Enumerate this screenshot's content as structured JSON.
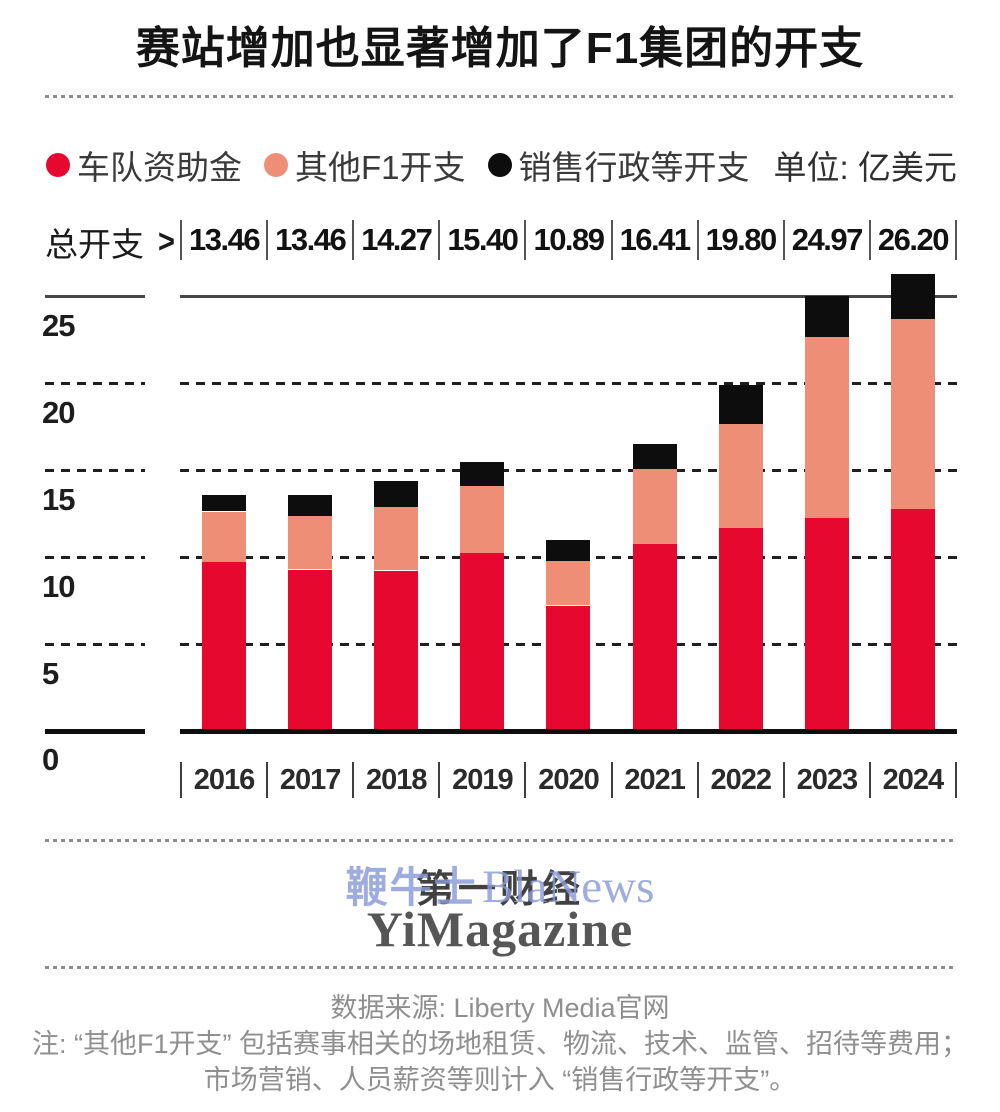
{
  "title": "赛站增加也显著增加了F1集团的开支",
  "legend": {
    "items": [
      {
        "label": "车队资助金",
        "color": "#e6082e"
      },
      {
        "label": "其他F1开支",
        "color": "#ef8e76"
      },
      {
        "label": "销售行政等开支",
        "color": "#0d0d0d"
      }
    ],
    "unit_label": "单位: 亿美元"
  },
  "total_row": {
    "label": "总开支",
    "arrow": ">",
    "values": [
      "13.46",
      "13.46",
      "14.27",
      "15.40",
      "10.89",
      "16.41",
      "19.80",
      "24.97",
      "26.20"
    ]
  },
  "chart_data": {
    "type": "bar",
    "stacked": true,
    "title": "赛站增加也显著增加了F1集团的开支",
    "unit": "亿美元",
    "categories": [
      "2016",
      "2017",
      "2018",
      "2019",
      "2020",
      "2021",
      "2022",
      "2023",
      "2024"
    ],
    "series": [
      {
        "name": "车队资助金",
        "color": "#e6082e",
        "values": [
          9.65,
          9.19,
          9.13,
          10.12,
          7.11,
          10.68,
          11.57,
          12.15,
          12.66
        ]
      },
      {
        "name": "其他F1开支",
        "color": "#ef8e76",
        "values": [
          2.88,
          3.07,
          3.64,
          3.88,
          2.56,
          4.28,
          6.01,
          10.42,
          10.97
        ]
      },
      {
        "name": "销售行政等开支",
        "color": "#0d0d0d",
        "values": [
          0.93,
          1.2,
          1.5,
          1.4,
          1.22,
          1.45,
          2.22,
          2.4,
          2.57
        ]
      }
    ],
    "totals": [
      13.46,
      13.46,
      14.27,
      15.4,
      10.89,
      16.41,
      19.8,
      24.97,
      26.2
    ],
    "yticks": [
      0,
      5,
      10,
      15,
      20,
      25
    ],
    "ytick_labels_desc": [
      "25",
      "20",
      "15",
      "10",
      "5",
      "0"
    ],
    "ylim": [
      0,
      25
    ],
    "grid": "dashed horizontal, solid line at 25, solid baseline at 0",
    "legend_position": "top"
  },
  "watermark": {
    "cn_gray": "第一财经",
    "cn_blue": "鞭牛士",
    "en_blue": "BlaNews",
    "en_gray": "YiMagazine",
    "blue_color": "#8b9ad7"
  },
  "footer": {
    "source": "数据来源: Liberty Media官网",
    "note_line1": "注: “其他F1开支” 包括赛事相关的场地租赁、物流、技术、监管、招待等费用；",
    "note_line2": "市场营销、人员薪资等则计入 “销售行政等开支”。"
  }
}
